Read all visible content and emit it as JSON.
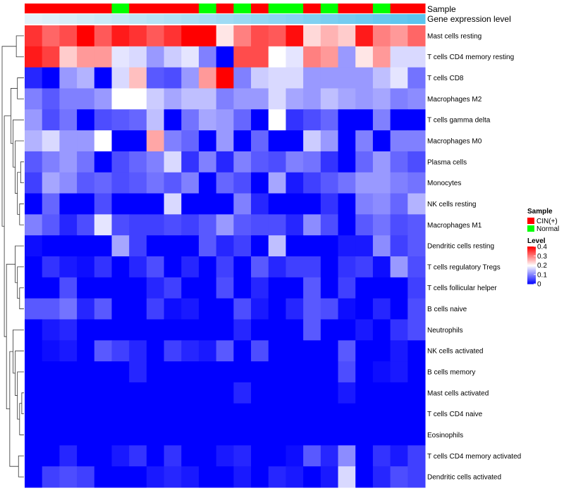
{
  "chart_data": {
    "type": "heatmap",
    "track_labels": [
      "Sample",
      "Gene expression level"
    ],
    "rows": [
      "Mast cells resting",
      "T cells CD4 memory resting",
      "T cells CD8",
      "Macrophages M2",
      "T cells gamma delta",
      "Macrophages M0",
      "Plasma cells",
      "Monocytes",
      "NK cells resting",
      "Macrophages M1",
      "Dendritic cells resting",
      "T cells regulatory  Tregs",
      "T cells follicular helper",
      "B cells naive",
      "Neutrophils",
      "NK cells activated",
      "B cells memory",
      "Mast cells activated",
      "T cells CD4 naive",
      "Eosinophils",
      "T cells CD4 memory activated",
      "Dendritic cells activated"
    ],
    "sample_groups": [
      "CIN",
      "CIN",
      "CIN",
      "CIN",
      "CIN",
      "Normal",
      "CIN",
      "CIN",
      "CIN",
      "CIN",
      "Normal",
      "CIN",
      "Normal",
      "CIN",
      "Normal",
      "Normal",
      "CIN",
      "Normal",
      "CIN",
      "CIN",
      "Normal",
      "CIN",
      "CIN"
    ],
    "expression_level": [
      0.42,
      0.41,
      0.4,
      0.39,
      0.38,
      0.37,
      0.36,
      0.35,
      0.34,
      0.33,
      0.32,
      0.31,
      0.3,
      0.29,
      0.28,
      0.27,
      0.26,
      0.25,
      0.24,
      0.23,
      0.22,
      0.21,
      0.2
    ],
    "values": [
      [
        0.36,
        0.32,
        0.34,
        0.4,
        0.33,
        0.38,
        0.36,
        0.33,
        0.36,
        0.4,
        0.4,
        0.22,
        0.3,
        0.34,
        0.33,
        0.39,
        0.23,
        0.26,
        0.24,
        0.38,
        0.3,
        0.28,
        0.32
      ],
      [
        0.38,
        0.35,
        0.24,
        0.28,
        0.28,
        0.18,
        0.17,
        0.12,
        0.16,
        0.18,
        0.1,
        0.0,
        0.34,
        0.34,
        0.2,
        0.18,
        0.3,
        0.28,
        0.12,
        0.22,
        0.28,
        0.17,
        0.17
      ],
      [
        0.03,
        0.0,
        0.12,
        0.14,
        0.0,
        0.17,
        0.25,
        0.07,
        0.06,
        0.12,
        0.28,
        0.4,
        0.1,
        0.16,
        0.17,
        0.17,
        0.12,
        0.12,
        0.12,
        0.12,
        0.15,
        0.18,
        0.09
      ],
      [
        0.1,
        0.07,
        0.1,
        0.1,
        0.12,
        0.2,
        0.2,
        0.16,
        0.13,
        0.15,
        0.15,
        0.1,
        0.12,
        0.12,
        0.17,
        0.13,
        0.12,
        0.15,
        0.13,
        0.12,
        0.13,
        0.1,
        0.11
      ],
      [
        0.12,
        0.06,
        0.09,
        0.0,
        0.06,
        0.07,
        0.08,
        0.15,
        0.0,
        0.09,
        0.13,
        0.12,
        0.08,
        0.0,
        0.2,
        0.04,
        0.06,
        0.08,
        0.0,
        0.0,
        0.1,
        0.0,
        0.0
      ],
      [
        0.14,
        0.17,
        0.12,
        0.12,
        0.2,
        0.0,
        0.0,
        0.27,
        0.1,
        0.08,
        0.0,
        0.12,
        0.0,
        0.08,
        0.0,
        0.0,
        0.16,
        0.12,
        0.0,
        0.1,
        0.0,
        0.1,
        0.1
      ],
      [
        0.07,
        0.1,
        0.12,
        0.09,
        0.0,
        0.06,
        0.08,
        0.1,
        0.17,
        0.04,
        0.1,
        0.03,
        0.1,
        0.07,
        0.06,
        0.1,
        0.09,
        0.04,
        0.0,
        0.08,
        0.12,
        0.08,
        0.06
      ],
      [
        0.05,
        0.13,
        0.11,
        0.07,
        0.08,
        0.06,
        0.07,
        0.09,
        0.07,
        0.1,
        0.0,
        0.08,
        0.06,
        0.0,
        0.13,
        0.02,
        0.05,
        0.07,
        0.09,
        0.12,
        0.12,
        0.1,
        0.09
      ],
      [
        0.0,
        0.08,
        0.0,
        0.0,
        0.06,
        0.0,
        0.0,
        0.0,
        0.17,
        0.0,
        0.0,
        0.0,
        0.1,
        0.03,
        0.0,
        0.0,
        0.0,
        0.04,
        0.0,
        0.1,
        0.11,
        0.08,
        0.14
      ],
      [
        0.1,
        0.07,
        0.03,
        0.06,
        0.18,
        0.06,
        0.05,
        0.05,
        0.06,
        0.05,
        0.07,
        0.12,
        0.07,
        0.06,
        0.06,
        0.03,
        0.11,
        0.06,
        0.0,
        0.07,
        0.09,
        0.06,
        0.07
      ],
      [
        0.01,
        0.0,
        0.0,
        0.0,
        0.0,
        0.13,
        0.05,
        0.0,
        0.0,
        0.0,
        0.07,
        0.03,
        0.05,
        0.0,
        0.15,
        0.0,
        0.0,
        0.0,
        0.02,
        0.02,
        0.11,
        0.05,
        0.07
      ],
      [
        0.0,
        0.04,
        0.02,
        0.01,
        0.04,
        0.0,
        0.03,
        0.06,
        0.0,
        0.03,
        0.0,
        0.05,
        0.0,
        0.07,
        0.03,
        0.05,
        0.05,
        0.0,
        0.04,
        0.05,
        0.01,
        0.12,
        0.06
      ],
      [
        0.0,
        0.0,
        0.06,
        0.0,
        0.0,
        0.0,
        0.0,
        0.03,
        0.05,
        0.0,
        0.0,
        0.06,
        0.0,
        0.03,
        0.0,
        0.0,
        0.07,
        0.0,
        0.05,
        0.0,
        0.0,
        0.0,
        0.05
      ],
      [
        0.07,
        0.07,
        0.09,
        0.03,
        0.07,
        0.0,
        0.0,
        0.05,
        0.01,
        0.02,
        0.0,
        0.0,
        0.06,
        0.02,
        0.0,
        0.03,
        0.07,
        0.06,
        0.01,
        0.0,
        0.03,
        0.0,
        0.06
      ],
      [
        0.0,
        0.02,
        0.03,
        0.0,
        0.0,
        0.0,
        0.0,
        0.0,
        0.0,
        0.0,
        0.0,
        0.0,
        0.03,
        0.0,
        0.0,
        0.0,
        0.07,
        0.0,
        0.0,
        0.02,
        0.0,
        0.04,
        0.06
      ],
      [
        0.0,
        0.01,
        0.02,
        0.0,
        0.07,
        0.05,
        0.03,
        0.0,
        0.05,
        0.03,
        0.02,
        0.07,
        0.0,
        0.06,
        0.0,
        0.0,
        0.0,
        0.0,
        0.07,
        0.0,
        0.0,
        0.02,
        0.0
      ],
      [
        0.0,
        0.0,
        0.0,
        0.0,
        0.0,
        0.0,
        0.03,
        0.0,
        0.0,
        0.0,
        0.0,
        0.0,
        0.0,
        0.0,
        0.0,
        0.0,
        0.0,
        0.0,
        0.06,
        0.0,
        0.01,
        0.02,
        0.0
      ],
      [
        0.0,
        0.0,
        0.0,
        0.0,
        0.0,
        0.0,
        0.0,
        0.0,
        0.0,
        0.0,
        0.0,
        0.0,
        0.03,
        0.0,
        0.0,
        0.0,
        0.0,
        0.0,
        0.02,
        0.0,
        0.0,
        0.0,
        0.0
      ],
      [
        0.0,
        0.0,
        0.0,
        0.0,
        0.0,
        0.0,
        0.0,
        0.0,
        0.0,
        0.0,
        0.0,
        0.0,
        0.0,
        0.0,
        0.0,
        0.0,
        0.0,
        0.0,
        0.0,
        0.0,
        0.0,
        0.0,
        0.0
      ],
      [
        0.0,
        0.0,
        0.0,
        0.0,
        0.0,
        0.0,
        0.0,
        0.0,
        0.0,
        0.0,
        0.0,
        0.0,
        0.0,
        0.0,
        0.0,
        0.0,
        0.0,
        0.0,
        0.0,
        0.0,
        0.0,
        0.0,
        0.0
      ],
      [
        0.0,
        0.0,
        0.03,
        0.0,
        0.0,
        0.02,
        0.04,
        0.0,
        0.04,
        0.0,
        0.0,
        0.02,
        0.03,
        0.0,
        0.0,
        0.01,
        0.07,
        0.03,
        0.11,
        0.0,
        0.04,
        0.02,
        0.05
      ],
      [
        0.0,
        0.05,
        0.06,
        0.05,
        0.0,
        0.0,
        0.0,
        0.02,
        0.03,
        0.02,
        0.0,
        0.0,
        0.02,
        0.0,
        0.03,
        0.02,
        0.0,
        0.02,
        0.17,
        0.0,
        0.03,
        0.06,
        0.05
      ]
    ],
    "color_scale": {
      "min": 0,
      "mid": 0.2,
      "max": 0.4,
      "low": "#0000ff",
      "mid_color": "#ffffff",
      "high": "#ff0000"
    },
    "annotation_colors": {
      "CIN": "#ff0000",
      "Normal": "#00ff00",
      "expr_low": "#5bc4ee",
      "expr_high": "#e4f2fa"
    },
    "legend": {
      "sample_title": "Sample",
      "sample_items": [
        {
          "label": "CIN(+)",
          "group": "CIN"
        },
        {
          "label": "Normal",
          "group": "Normal"
        }
      ],
      "level_title": "Level",
      "level_ticks": [
        {
          "value": 0.4,
          "label": "0.4"
        },
        {
          "value": 0.3,
          "label": "0.3"
        },
        {
          "value": 0.2,
          "label": "0.2"
        },
        {
          "value": 0.1,
          "label": "0.1"
        },
        {
          "value": 0,
          "label": "0"
        }
      ]
    },
    "dendrogram": {
      "merges": [
        [
          -18,
          -19
        ],
        [
          -20,
          1
        ],
        [
          -17,
          2
        ],
        [
          -16,
          3
        ],
        [
          -15,
          4
        ],
        [
          -21,
          -22
        ],
        [
          5,
          6
        ],
        [
          -13,
          -14
        ],
        [
          -12,
          8
        ],
        [
          -11,
          9
        ],
        [
          7,
          10
        ],
        [
          -9,
          -10
        ],
        [
          -7,
          -8
        ],
        [
          12,
          13
        ],
        [
          -6,
          14
        ],
        [
          -5,
          15
        ],
        [
          -3,
          -4
        ],
        [
          16,
          17
        ],
        [
          11,
          18
        ],
        [
          -1,
          -2
        ],
        [
          19,
          20
        ]
      ],
      "heights": [
        0.1,
        0.2,
        0.3,
        0.4,
        0.5,
        0.25,
        0.65,
        0.2,
        0.3,
        0.4,
        0.8,
        0.2,
        0.15,
        0.3,
        0.4,
        0.5,
        0.3,
        0.6,
        0.9,
        0.35,
        1.0
      ]
    }
  }
}
